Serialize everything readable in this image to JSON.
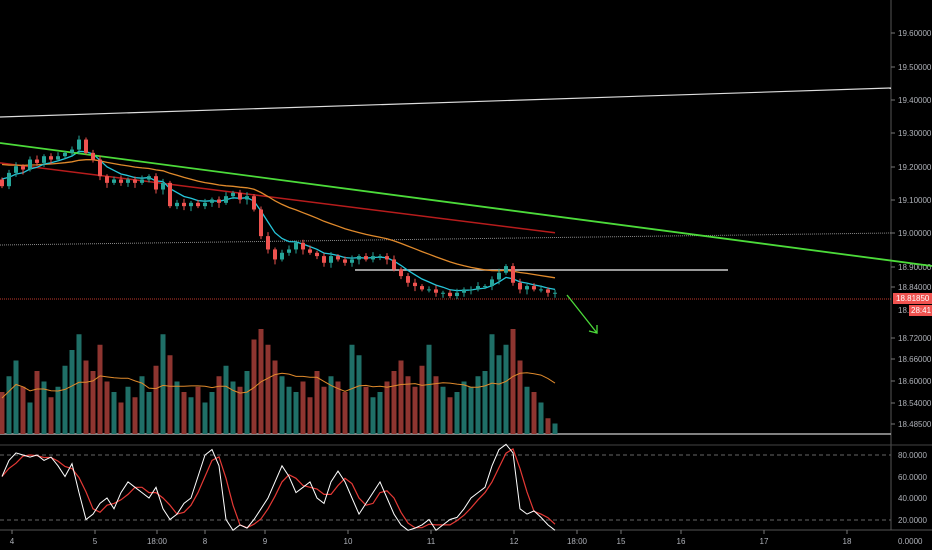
{
  "chart_data": {
    "type": "candlestick",
    "symbol_price": "18.81850",
    "countdown": "28:41",
    "price_ticks": [
      "19.60000",
      "19.50000",
      "19.40000",
      "19.30000",
      "19.20000",
      "19.10000",
      "19.00000",
      "18.90000",
      "18.84000",
      "18.72000",
      "18.66000",
      "18.60000",
      "18.54000",
      "18.48500"
    ],
    "oscillator_ticks": [
      "80.0000",
      "60.0000",
      "40.0000",
      "20.0000",
      "0.0000"
    ],
    "time_ticks": [
      "4",
      "5",
      "18:00",
      "8",
      "9",
      "10",
      "11",
      "12",
      "18:00",
      "15",
      "16",
      "17",
      "18"
    ],
    "closes": [
      19.14,
      19.18,
      19.2,
      19.19,
      19.22,
      19.21,
      19.23,
      19.22,
      19.23,
      19.24,
      19.25,
      19.28,
      19.24,
      19.22,
      19.17,
      19.15,
      19.16,
      19.15,
      19.16,
      19.15,
      19.16,
      19.17,
      19.13,
      19.15,
      19.08,
      19.09,
      19.08,
      19.09,
      19.08,
      19.09,
      19.1,
      19.09,
      19.11,
      19.12,
      19.1,
      19.11,
      19.07,
      18.99,
      18.95,
      18.92,
      18.94,
      18.95,
      18.97,
      18.95,
      18.94,
      18.93,
      18.91,
      18.93,
      18.92,
      18.91,
      18.92,
      18.93,
      18.92,
      18.93,
      18.93,
      18.92,
      18.89,
      18.87,
      18.85,
      18.84,
      18.83,
      18.83,
      18.82,
      18.82,
      18.81,
      18.82,
      18.83,
      18.83,
      18.84,
      18.84,
      18.86,
      18.88,
      18.9,
      18.85,
      18.83,
      18.84,
      18.83,
      18.83,
      18.82,
      18.82
    ],
    "volume": [
      40,
      55,
      70,
      45,
      30,
      60,
      50,
      35,
      45,
      65,
      80,
      95,
      70,
      60,
      85,
      50,
      40,
      30,
      45,
      35,
      55,
      40,
      65,
      95,
      75,
      50,
      40,
      35,
      45,
      30,
      40,
      55,
      65,
      50,
      45,
      60,
      90,
      100,
      85,
      70,
      55,
      45,
      40,
      50,
      35,
      60,
      45,
      55,
      50,
      40,
      85,
      75,
      45,
      35,
      40,
      50,
      60,
      70,
      55,
      45,
      65,
      85,
      55,
      45,
      35,
      40,
      50,
      45,
      55,
      60,
      95,
      75,
      85,
      100,
      70,
      45,
      40,
      30,
      15,
      10
    ],
    "stochastic_k": [
      60,
      75,
      82,
      80,
      78,
      80,
      75,
      78,
      70,
      60,
      72,
      45,
      20,
      25,
      35,
      40,
      30,
      45,
      55,
      50,
      45,
      40,
      50,
      30,
      20,
      25,
      35,
      40,
      60,
      80,
      85,
      70,
      20,
      10,
      15,
      12,
      20,
      30,
      40,
      55,
      70,
      60,
      45,
      50,
      55,
      40,
      35,
      55,
      65,
      55,
      40,
      25,
      35,
      45,
      55,
      40,
      25,
      15,
      10,
      12,
      15,
      20,
      10,
      15,
      20,
      22,
      30,
      40,
      45,
      50,
      70,
      85,
      90,
      82,
      30,
      25,
      28,
      22,
      15,
      10
    ],
    "colors": {
      "up": "#26a69a",
      "down": "#ef5350",
      "ema_fast": "#26c6da",
      "ema_slow": "#e08a2c",
      "ma_long": "#b71c1c",
      "trendline": "#4cdb3a",
      "stoch_k": "#ffffff",
      "stoch_d": "#e53935",
      "price_tag": "#f05350"
    }
  }
}
